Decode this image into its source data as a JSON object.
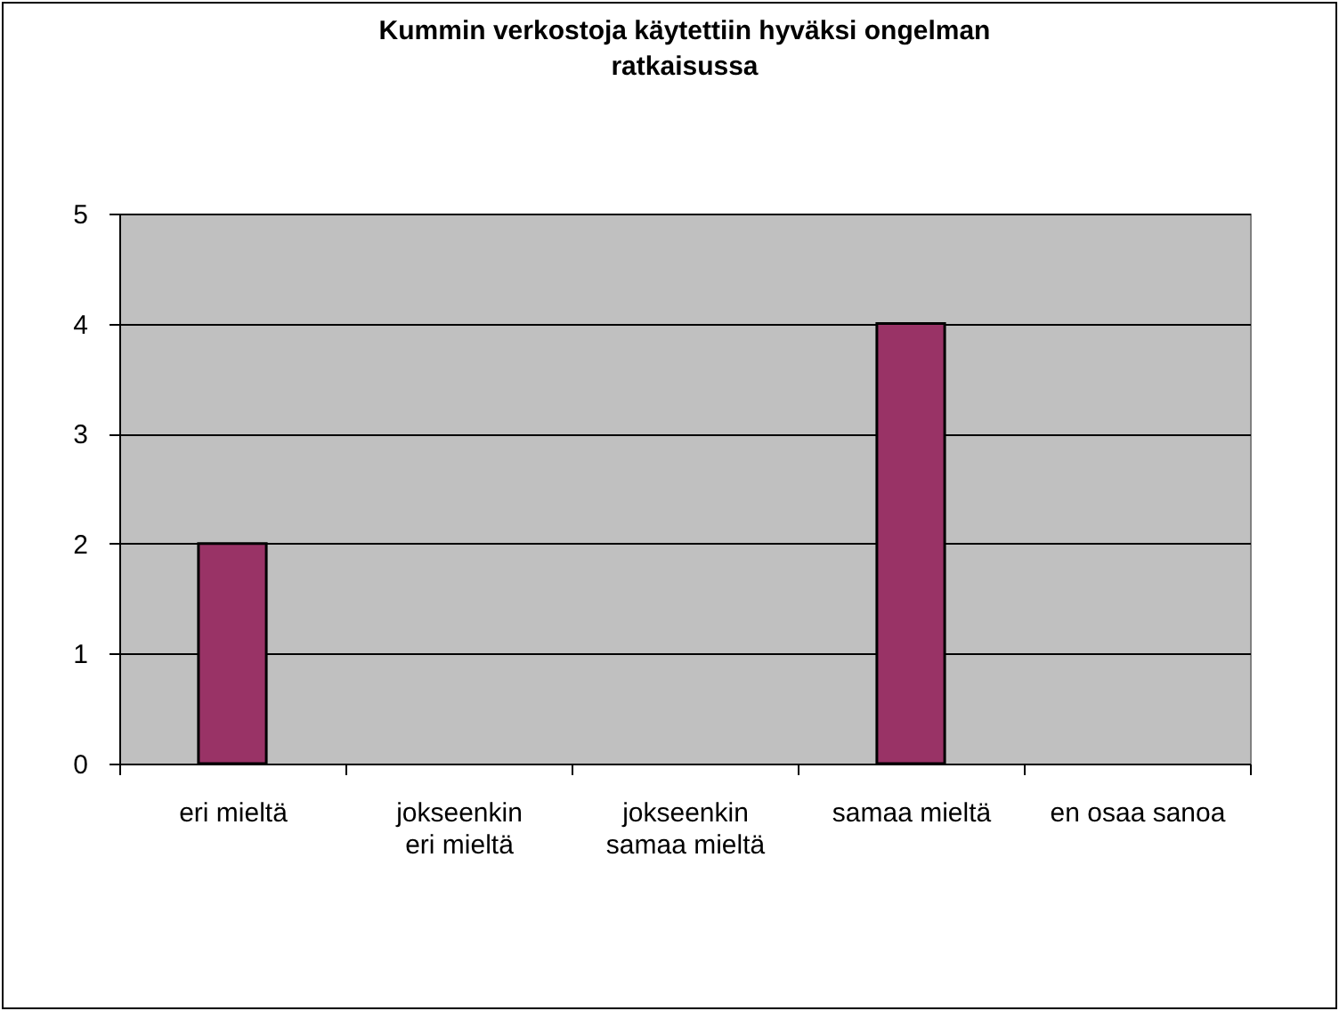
{
  "chart_data": {
    "type": "bar",
    "title": "Kummin verkostoja käytettiin hyväksi  ongelman ratkaisussa",
    "categories": [
      "eri mieltä",
      "jokseenkin eri mieltä",
      "jokseenkin samaa mieltä",
      "samaa mieltä",
      "en osaa sanoa"
    ],
    "values": [
      2,
      0,
      0,
      4,
      0
    ],
    "color": "#993366",
    "ylim": [
      0,
      5
    ],
    "yticks": [
      0,
      1,
      2,
      3,
      4,
      5
    ],
    "grid": "y",
    "legend": false
  }
}
